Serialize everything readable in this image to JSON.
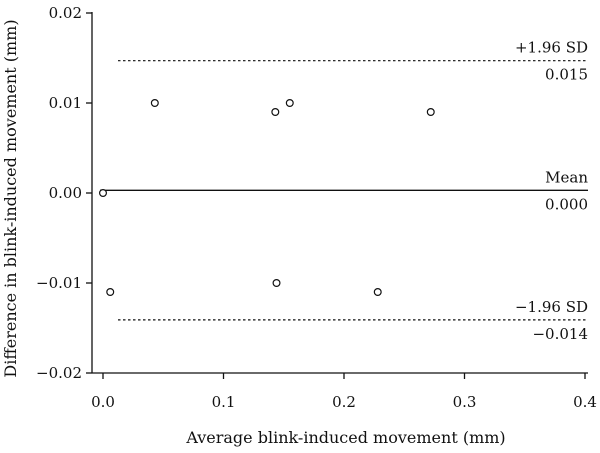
{
  "chart_data": {
    "type": "scatter",
    "xlabel": "Average blink-induced movement (mm)",
    "ylabel": "Difference in blink-induced movement (mm)",
    "xlim": [
      0.0,
      0.4
    ],
    "ylim": [
      -0.02,
      0.02
    ],
    "xticks": [
      0.0,
      0.1,
      0.2,
      0.3,
      0.4
    ],
    "xtick_labels": [
      "0.0",
      "0.1",
      "0.2",
      "0.3",
      "0.4"
    ],
    "yticks": [
      -0.02,
      -0.01,
      0.0,
      0.01,
      0.02
    ],
    "ytick_labels": [
      "−0.02",
      "−0.01",
      "0.00",
      "0.01",
      "0.02"
    ],
    "grid": false,
    "series": [
      {
        "x": [
          0.0,
          0.006,
          0.043,
          0.143,
          0.144,
          0.155,
          0.228,
          0.272
        ],
        "y": [
          0.0,
          -0.011,
          0.01,
          0.009,
          -0.01,
          0.01,
          -0.011,
          0.009
        ]
      }
    ],
    "reference_lines": [
      {
        "label": "+1.96 SD",
        "value_label": "0.015",
        "y": 0.0147,
        "style": "dotted"
      },
      {
        "label": "Mean",
        "value_label": "0.000",
        "y": 0.0003,
        "style": "solid"
      },
      {
        "label": "−1.96 SD",
        "value_label": "−0.014",
        "y": -0.0141,
        "style": "dotted"
      }
    ],
    "colors": {
      "ink": "#111111"
    }
  }
}
